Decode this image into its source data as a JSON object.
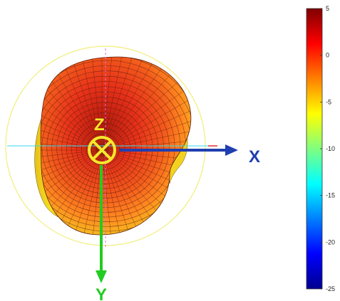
{
  "axes": {
    "x_label": "X",
    "y_label": "Y",
    "z_label": "Z",
    "x_color": "#1f3fb0",
    "y_color": "#22cc22",
    "z_color": "#f5e82a"
  },
  "colorbar": {
    "ticks": [
      "5",
      "0",
      "-5",
      "-10",
      "-15",
      "-20",
      "-25"
    ],
    "colormap": "jet",
    "max": 5,
    "min": -25
  },
  "colors": {
    "reference_circle": "#f1ee7a",
    "mesh_line": "#5a1a0a"
  }
}
